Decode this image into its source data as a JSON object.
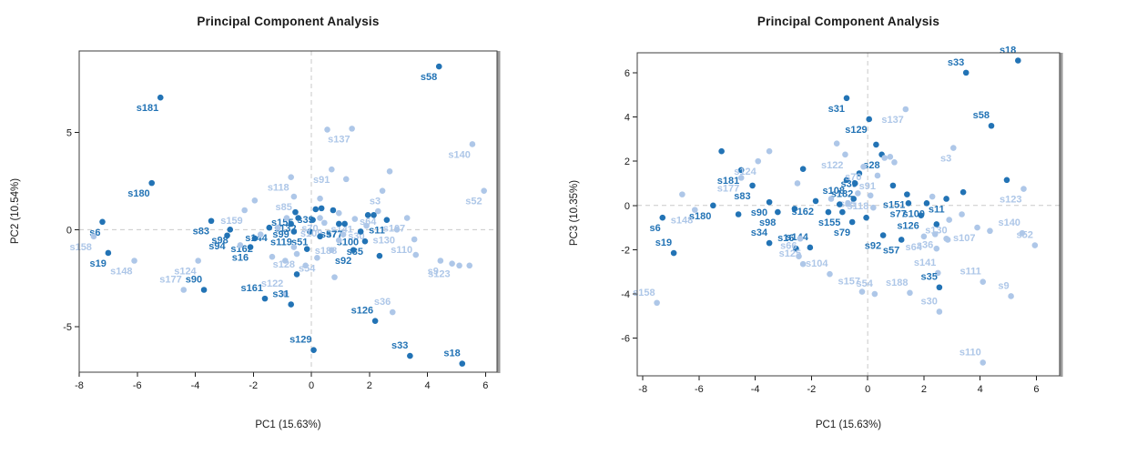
{
  "page": {
    "background": "#ffffff"
  },
  "chart_data": [
    {
      "type": "scatter",
      "title": "Principal Component Analysis",
      "xlabel": "PC1 (15.63%)",
      "ylabel": "PC2 (10.54%)",
      "xlim": [
        -8.0,
        6.4
      ],
      "ylim": [
        -7.34,
        9.2
      ],
      "xticks": [
        -8,
        -6,
        -4,
        -2,
        0,
        2,
        4,
        6
      ],
      "yticks": [
        -5,
        0,
        5
      ],
      "ref_lines": {
        "x": 0,
        "y": 0
      },
      "grid": false,
      "legend": "none",
      "colors": {
        "dark": "#2273b5",
        "light": "#aec7e8",
        "ref": "#c9c9c9",
        "frame": "#3c3c3c",
        "frame_shadow": "#9a9a9a"
      },
      "layout": {
        "box": {
          "l": 87,
          "t": 56,
          "r": 546,
          "b": 409
        }
      },
      "points": [
        [
          "s58",
          4.4,
          8.4,
          "d"
        ],
        [
          "s181",
          -5.2,
          6.8,
          "d"
        ],
        [
          "s180",
          -5.5,
          2.4,
          "d"
        ],
        [
          "s83",
          -3.45,
          0.45,
          "d"
        ],
        [
          "s6",
          -7.2,
          0.4,
          "d"
        ],
        [
          "s19",
          -7.0,
          -1.2,
          "d"
        ],
        [
          "s158",
          -7.5,
          -0.35,
          "l"
        ],
        [
          "s148",
          -6.1,
          -1.6,
          "l"
        ],
        [
          "s137",
          1.4,
          5.2,
          "l"
        ],
        [
          "s91",
          0.7,
          3.1,
          "l"
        ],
        [
          "s140",
          5.55,
          4.4,
          "l"
        ],
        [
          "s52",
          5.95,
          2.0,
          "l"
        ],
        [
          "s3",
          2.45,
          2.0,
          "l"
        ],
        [
          "s159",
          -2.3,
          1.0,
          "l"
        ],
        [
          "s118",
          -0.7,
          2.7,
          "l"
        ],
        [
          "s85",
          -0.6,
          1.7,
          "l"
        ],
        [
          "s64",
          2.3,
          0.95,
          "l"
        ],
        [
          "s141",
          1.5,
          0.55,
          "l"
        ],
        [
          "s11",
          2.6,
          0.5,
          "d"
        ],
        [
          "s107",
          3.3,
          0.6,
          "l"
        ],
        [
          "s130",
          2.95,
          0.0,
          "l"
        ],
        [
          "s30",
          1.9,
          0.2,
          "l"
        ],
        [
          "s100",
          1.7,
          -0.1,
          "d"
        ],
        [
          "s35",
          1.85,
          -0.6,
          "d"
        ],
        [
          "s110",
          3.55,
          -0.5,
          "l"
        ],
        [
          "s9",
          4.45,
          -1.6,
          "l"
        ],
        [
          "s123",
          4.85,
          -1.75,
          "l"
        ],
        [
          "s92",
          1.45,
          -1.05,
          "d"
        ],
        [
          "s36",
          2.8,
          -4.25,
          "l",
          "al"
        ],
        [
          "s126",
          2.2,
          -4.7,
          "d",
          "al"
        ],
        [
          "s129",
          0.08,
          -6.2,
          "d",
          "al"
        ],
        [
          "s33",
          3.4,
          -6.5,
          "d",
          "al"
        ],
        [
          "s18",
          5.2,
          -6.9,
          "d",
          "al"
        ],
        [
          "s161",
          -1.6,
          -3.55,
          "d",
          "al"
        ],
        [
          "s122",
          -0.9,
          -3.3,
          "l",
          "al"
        ],
        [
          "s31",
          -0.7,
          -3.85,
          "d",
          "al"
        ],
        [
          "s90",
          -3.7,
          -3.1,
          "d",
          "al"
        ],
        [
          "s177",
          -4.4,
          -3.1,
          "l",
          "al"
        ],
        [
          "s124",
          -3.9,
          -1.6,
          "l"
        ],
        [
          "s16",
          -2.1,
          -0.9,
          "d"
        ],
        [
          "s162",
          -1.95,
          -0.45,
          "d"
        ],
        [
          "s94",
          -2.9,
          -0.3,
          "d"
        ],
        [
          "s98",
          -2.8,
          0.0,
          "d"
        ],
        [
          "s144",
          -1.45,
          0.1,
          "d"
        ],
        [
          "s155",
          -0.55,
          0.9,
          "d"
        ],
        [
          "s132",
          -0.45,
          0.6,
          "d"
        ],
        [
          "s99",
          -0.7,
          0.3,
          "d"
        ],
        [
          "s39",
          0.15,
          1.05,
          "d"
        ],
        [
          "s119",
          -0.6,
          -0.1,
          "d"
        ],
        [
          "s51",
          -0.05,
          -0.1,
          "d"
        ],
        [
          "s57",
          0.95,
          0.3,
          "d"
        ],
        [
          "s77",
          1.15,
          0.3,
          "d"
        ],
        [
          "s188",
          0.95,
          -0.55,
          "l"
        ],
        [
          "s54",
          0.2,
          -1.45,
          "l"
        ],
        [
          "s128",
          -0.5,
          -1.25,
          "l"
        ],
        [
          "s70",
          0.3,
          0.6,
          "l"
        ],
        [
          "s109",
          0.45,
          0.35,
          "l"
        ],
        [
          "",
          0.35,
          1.1,
          "d"
        ],
        [
          "",
          0.75,
          1.0,
          "d"
        ],
        [
          "",
          1.95,
          0.75,
          "d"
        ],
        [
          "",
          2.15,
          0.75,
          "d"
        ],
        [
          "",
          0.05,
          0.5,
          "d"
        ],
        [
          "",
          0.3,
          -0.35,
          "d"
        ],
        [
          "",
          -0.15,
          -1.0,
          "d"
        ],
        [
          "",
          2.35,
          -1.35,
          "d"
        ],
        [
          "",
          -0.5,
          -2.3,
          "d"
        ],
        [
          "",
          -1.95,
          1.5,
          "l"
        ],
        [
          "",
          0.55,
          5.15,
          "l"
        ],
        [
          "",
          2.7,
          3.0,
          "l"
        ],
        [
          "",
          1.2,
          2.6,
          "l"
        ],
        [
          "",
          0.3,
          1.6,
          "l"
        ],
        [
          "",
          0.95,
          0.85,
          "l"
        ],
        [
          "",
          -0.85,
          0.6,
          "l"
        ],
        [
          "",
          1.1,
          -0.25,
          "l"
        ],
        [
          "",
          0.7,
          -1.05,
          "l"
        ],
        [
          "",
          -0.2,
          -1.85,
          "l"
        ],
        [
          "",
          -1.35,
          -1.4,
          "l"
        ],
        [
          "",
          -2.45,
          -0.8,
          "l"
        ],
        [
          "",
          -1.75,
          -0.25,
          "l"
        ],
        [
          "",
          3.6,
          -1.3,
          "l"
        ],
        [
          "",
          5.1,
          -1.85,
          "l"
        ],
        [
          "",
          5.45,
          -1.85,
          "l"
        ],
        [
          "",
          0.8,
          -2.45,
          "l"
        ],
        [
          "",
          -0.6,
          -0.9,
          "l"
        ],
        [
          "",
          -1.15,
          0.1,
          "l"
        ],
        [
          "",
          -0.9,
          -1.6,
          "l"
        ]
      ]
    },
    {
      "type": "scatter",
      "title": "Principal Component Analysis",
      "xlabel": "PC1 (15.63%)",
      "ylabel": "PC3 (10.35%)",
      "xlim": [
        -8.2,
        6.83
      ],
      "ylim": [
        -7.7,
        6.9
      ],
      "xticks": [
        -8,
        -6,
        -4,
        -2,
        0,
        2,
        4,
        6
      ],
      "yticks": [
        -6,
        -4,
        -2,
        0,
        2,
        4,
        6
      ],
      "ref_lines": {
        "x": 0,
        "y": 0
      },
      "grid": false,
      "legend": "none",
      "colors": {
        "dark": "#2273b5",
        "light": "#aec7e8",
        "ref": "#c9c9c9",
        "frame": "#3c3c3c",
        "frame_shadow": "#9a9a9a"
      },
      "layout": {
        "box": {
          "l": 81,
          "t": 58,
          "r": 545,
          "b": 413
        }
      },
      "points": [
        [
          "s18",
          5.35,
          6.55,
          "d",
          "al"
        ],
        [
          "s33",
          3.5,
          6.0,
          "d",
          "al"
        ],
        [
          "s58",
          4.4,
          3.6,
          "d",
          "al"
        ],
        [
          "s31",
          -0.75,
          4.85,
          "d"
        ],
        [
          "s129",
          0.05,
          3.9,
          "d"
        ],
        [
          "s137",
          1.35,
          4.35,
          "l"
        ],
        [
          "s28",
          0.5,
          2.3,
          "d"
        ],
        [
          "s3",
          3.05,
          2.6,
          "l"
        ],
        [
          "s181",
          -4.5,
          1.6,
          "d"
        ],
        [
          "s83",
          -4.1,
          0.9,
          "d"
        ],
        [
          "s124",
          -3.9,
          2.0,
          "l"
        ],
        [
          "s177",
          -4.5,
          1.25,
          "l"
        ],
        [
          "s180",
          -5.5,
          0.0,
          "d"
        ],
        [
          "s6",
          -7.3,
          -0.55,
          "d"
        ],
        [
          "s148",
          -6.15,
          -0.2,
          "l"
        ],
        [
          "s19",
          -6.9,
          -2.15,
          "d",
          "al"
        ],
        [
          "s158",
          -7.5,
          -4.4,
          "l",
          "al"
        ],
        [
          "s34",
          -3.5,
          -1.7,
          "d",
          "al"
        ],
        [
          "s16",
          -2.55,
          -1.95,
          "d",
          "al"
        ],
        [
          "s144",
          -2.05,
          -1.9,
          "d",
          "al"
        ],
        [
          "s66",
          -2.45,
          -2.3,
          "l",
          "al"
        ],
        [
          "s125",
          -2.3,
          -2.65,
          "l",
          "al"
        ],
        [
          "s104",
          -1.35,
          -3.1,
          "l",
          "al"
        ],
        [
          "s157",
          -0.2,
          -3.9,
          "l",
          "al"
        ],
        [
          "s54",
          0.25,
          -4.0,
          "l",
          "al"
        ],
        [
          "s188",
          1.5,
          -3.95,
          "l",
          "al"
        ],
        [
          "s141",
          2.5,
          -3.05,
          "l",
          "al"
        ],
        [
          "s35",
          2.55,
          -3.7,
          "d",
          "al"
        ],
        [
          "s111",
          4.1,
          -3.45,
          "l",
          "al"
        ],
        [
          "s9",
          5.1,
          -4.1,
          "l",
          "al"
        ],
        [
          "s30",
          2.55,
          -4.8,
          "l",
          "al"
        ],
        [
          "s110",
          4.1,
          -7.1,
          "l",
          "al"
        ],
        [
          "s52",
          5.95,
          -1.8,
          "l",
          "al"
        ],
        [
          "s140",
          5.5,
          -1.25,
          "l",
          "al"
        ],
        [
          "s123",
          5.55,
          0.75,
          "l"
        ],
        [
          "s107",
          3.9,
          -1.0,
          "l"
        ],
        [
          "s130",
          2.9,
          -0.65,
          "l"
        ],
        [
          "s90",
          -3.5,
          0.15,
          "d"
        ],
        [
          "s98",
          -3.2,
          -0.3,
          "d"
        ],
        [
          "s162",
          -1.85,
          0.2,
          "d"
        ],
        [
          "s108",
          -0.75,
          1.15,
          "d"
        ],
        [
          "s182",
          -0.45,
          1.0,
          "d"
        ],
        [
          "s39",
          -0.3,
          1.45,
          "d"
        ],
        [
          "s70",
          -0.15,
          1.75,
          "l"
        ],
        [
          "s91",
          0.35,
          1.35,
          "l"
        ],
        [
          "s85",
          -0.35,
          0.55,
          "l"
        ],
        [
          "s118",
          0.1,
          0.45,
          "l"
        ],
        [
          "s122",
          -0.8,
          2.3,
          "l"
        ],
        [
          "s155",
          -0.9,
          -0.3,
          "d"
        ],
        [
          "s79",
          -0.55,
          -0.75,
          "d"
        ],
        [
          "s151",
          1.4,
          0.5,
          "d"
        ],
        [
          "s77",
          1.45,
          0.1,
          "d"
        ],
        [
          "s100",
          2.1,
          0.1,
          "d"
        ],
        [
          "s11",
          2.8,
          0.3,
          "d"
        ],
        [
          "s126",
          1.9,
          -0.45,
          "d"
        ],
        [
          "s92",
          0.55,
          -1.35,
          "d"
        ],
        [
          "s57",
          1.2,
          -1.55,
          "d"
        ],
        [
          "s64",
          2.0,
          -1.4,
          "l"
        ],
        [
          "s36",
          2.4,
          -1.3,
          "l"
        ],
        [
          "",
          -5.2,
          2.45,
          "d"
        ],
        [
          "",
          -2.3,
          1.65,
          "d"
        ],
        [
          "",
          3.4,
          0.6,
          "d"
        ],
        [
          "",
          4.95,
          1.15,
          "d"
        ],
        [
          "",
          2.45,
          -0.85,
          "d"
        ],
        [
          "",
          -0.05,
          -0.55,
          "d"
        ],
        [
          "",
          -1.4,
          -0.3,
          "d"
        ],
        [
          "",
          -2.6,
          -0.15,
          "d"
        ],
        [
          "",
          -4.6,
          -0.4,
          "d"
        ],
        [
          "",
          -0.5,
          0.3,
          "d"
        ],
        [
          "",
          -1.0,
          0.05,
          "d"
        ],
        [
          "",
          0.9,
          0.9,
          "d"
        ],
        [
          "",
          0.3,
          2.75,
          "d"
        ],
        [
          "",
          -6.6,
          0.5,
          "l"
        ],
        [
          "",
          -3.5,
          2.45,
          "l"
        ],
        [
          "",
          -2.5,
          1.0,
          "l"
        ],
        [
          "",
          -1.1,
          2.8,
          "l"
        ],
        [
          "",
          0.6,
          2.15,
          "l"
        ],
        [
          "",
          0.8,
          2.2,
          "l"
        ],
        [
          "",
          0.95,
          1.95,
          "l"
        ],
        [
          "",
          -1.3,
          0.3,
          "l"
        ],
        [
          "",
          -0.7,
          0.1,
          "l"
        ],
        [
          "",
          0.2,
          -0.1,
          "l"
        ],
        [
          "",
          2.3,
          0.4,
          "l"
        ],
        [
          "",
          3.35,
          -0.4,
          "l"
        ],
        [
          "",
          4.35,
          -1.15,
          "l"
        ],
        [
          "",
          2.8,
          -1.5,
          "l"
        ],
        [
          "",
          -2.4,
          -1.5,
          "l"
        ],
        [
          "",
          2.45,
          -1.95,
          "l"
        ],
        [
          "",
          2.85,
          -1.55,
          "l"
        ]
      ]
    }
  ]
}
